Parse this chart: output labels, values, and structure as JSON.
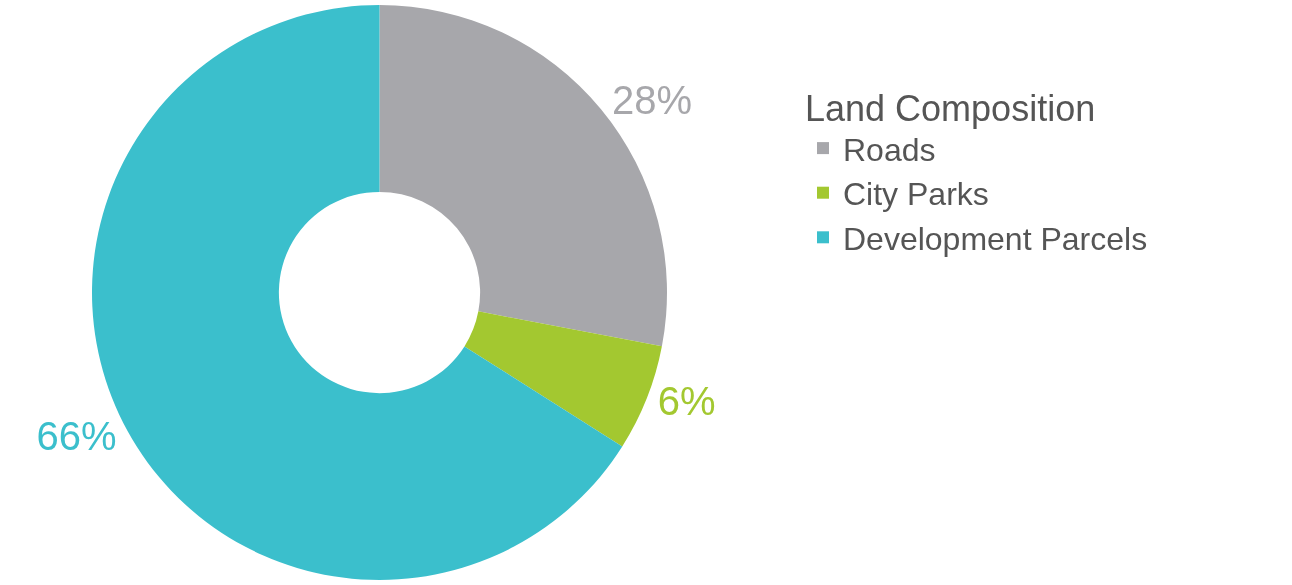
{
  "chart_data": {
    "type": "donut",
    "legend_title": "Land Composition",
    "categories": [
      "Roads",
      "City Parks",
      "Development Parcels"
    ],
    "values": [
      28,
      6,
      66
    ],
    "value_labels": [
      "28%",
      "6%",
      "66%"
    ],
    "colors": [
      "#a7a7ab",
      "#a3c830",
      "#3bbfcc"
    ],
    "legend": "right"
  }
}
